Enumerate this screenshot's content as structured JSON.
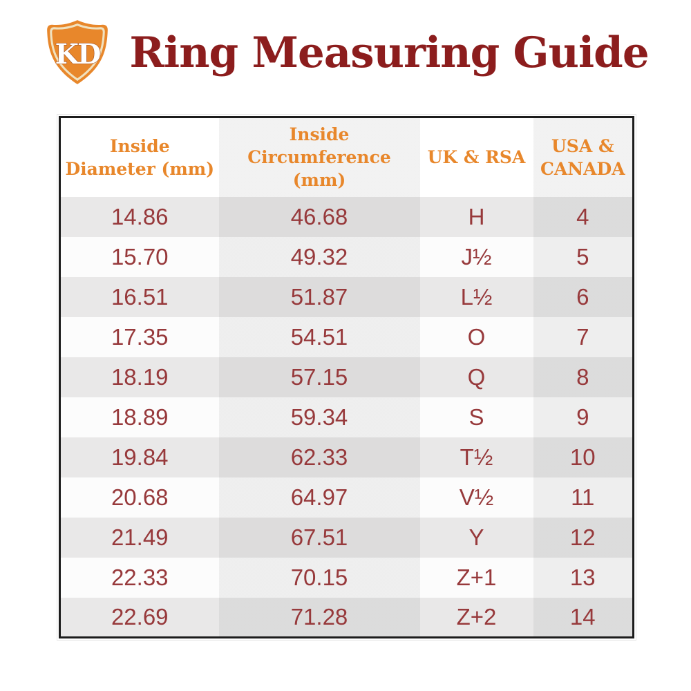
{
  "header": {
    "logo_text": "KD",
    "title": "Ring Measuring Guide"
  },
  "chart_data": {
    "type": "table",
    "title": "Ring Measuring Guide",
    "columns": [
      "Inside Diameter (mm)",
      "Inside Circumference (mm)",
      "UK & RSA",
      "USA & CANADA"
    ],
    "rows": [
      [
        "14.86",
        "46.68",
        "H",
        "4"
      ],
      [
        "15.70",
        "49.32",
        "J½",
        "5"
      ],
      [
        "16.51",
        "51.87",
        "L½",
        "6"
      ],
      [
        "17.35",
        "54.51",
        "O",
        "7"
      ],
      [
        "18.19",
        "57.15",
        "Q",
        "8"
      ],
      [
        "18.89",
        "59.34",
        "S",
        "9"
      ],
      [
        "19.84",
        "62.33",
        "T½",
        "10"
      ],
      [
        "20.68",
        "64.97",
        "V½",
        "11"
      ],
      [
        "21.49",
        "67.51",
        "Y",
        "12"
      ],
      [
        "22.33",
        "70.15",
        "Z+1",
        "13"
      ],
      [
        "22.69",
        "71.28",
        "Z+2",
        "14"
      ]
    ]
  },
  "colors": {
    "accent_orange": "#E8872B",
    "title_maroon": "#8C1D1D",
    "cell_text_maroon": "#97393B",
    "table_border": "#1C1C1C",
    "row_odd_bg": "#E9E8E8",
    "row_even_bg": "#FCFCFC",
    "logo_inner_border": "#F0E2C0",
    "logo_letter_shadow": "#9C4A1C"
  }
}
